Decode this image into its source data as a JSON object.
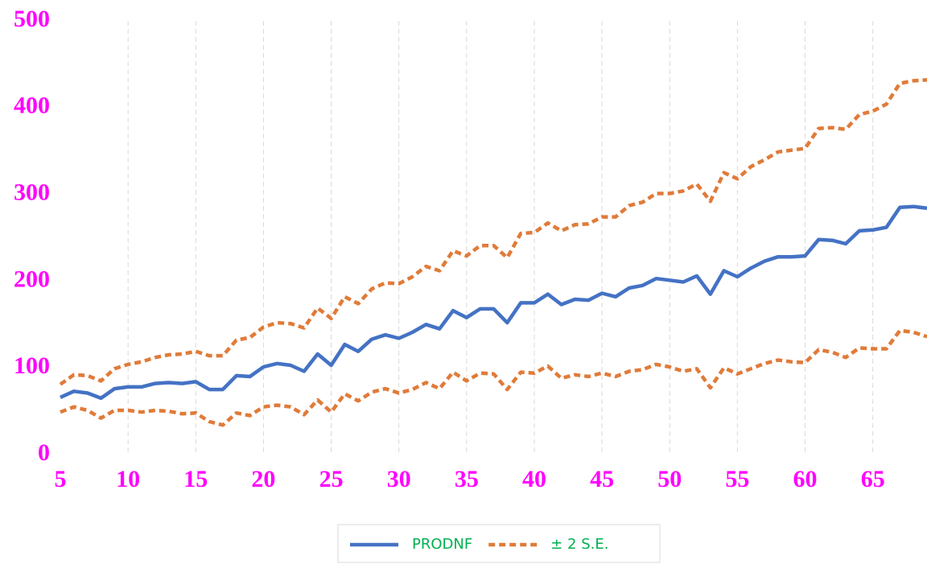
{
  "chart_data": {
    "type": "line",
    "x": [
      5,
      6,
      7,
      8,
      9,
      10,
      11,
      12,
      13,
      14,
      15,
      16,
      17,
      18,
      19,
      20,
      21,
      22,
      23,
      24,
      25,
      26,
      27,
      28,
      29,
      30,
      31,
      32,
      33,
      34,
      35,
      36,
      37,
      38,
      39,
      40,
      41,
      42,
      43,
      44,
      45,
      46,
      47,
      48,
      49,
      50,
      51,
      52,
      53,
      54,
      55,
      56,
      57,
      58,
      59,
      60,
      61,
      62,
      63,
      64,
      65,
      66,
      67,
      68,
      69
    ],
    "series": [
      {
        "name": "PRODNF",
        "color": "#4472c4",
        "dash": false,
        "values": [
          66,
          73,
          71,
          65,
          76,
          78,
          78,
          82,
          83,
          82,
          84,
          75,
          75,
          91,
          90,
          101,
          105,
          103,
          96,
          116,
          103,
          127,
          119,
          133,
          138,
          134,
          141,
          150,
          145,
          166,
          158,
          168,
          168,
          152,
          175,
          175,
          185,
          173,
          179,
          178,
          186,
          182,
          192,
          195,
          203,
          201,
          199,
          206,
          185,
          212,
          205,
          215,
          223,
          228,
          228,
          229,
          248,
          247,
          243,
          258,
          259,
          262,
          285,
          286,
          284
        ]
      },
      {
        "name": "± 2 S.E.",
        "color": "#e07b39",
        "dash": true,
        "values": [
          81,
          92,
          91,
          85,
          99,
          104,
          107,
          112,
          115,
          116,
          119,
          114,
          114,
          132,
          135,
          147,
          152,
          151,
          146,
          169,
          157,
          182,
          174,
          191,
          198,
          197,
          205,
          217,
          212,
          235,
          229,
          241,
          241,
          227,
          255,
          256,
          267,
          258,
          265,
          266,
          274,
          274,
          287,
          291,
          301,
          301,
          304,
          312,
          292,
          325,
          318,
          332,
          340,
          349,
          351,
          353,
          376,
          377,
          375,
          392,
          396,
          404,
          428,
          431,
          432
        ]
      },
      {
        "name": "± 2 S.E.",
        "color": "#e07b39",
        "dash": true,
        "values": [
          49,
          55,
          51,
          42,
          51,
          51,
          49,
          51,
          50,
          47,
          48,
          38,
          34,
          48,
          45,
          55,
          57,
          55,
          46,
          63,
          49,
          70,
          62,
          72,
          76,
          71,
          75,
          83,
          76,
          95,
          85,
          94,
          93,
          75,
          95,
          94,
          102,
          88,
          92,
          90,
          94,
          90,
          96,
          98,
          104,
          101,
          96,
          99,
          77,
          100,
          93,
          99,
          105,
          109,
          107,
          106,
          121,
          118,
          112,
          123,
          122,
          122,
          143,
          141,
          136
        ]
      }
    ],
    "xlim": [
      5,
      69
    ],
    "xticks": [
      5,
      10,
      15,
      20,
      25,
      30,
      35,
      40,
      45,
      50,
      55,
      60,
      65
    ],
    "ylim": [
      0,
      500
    ],
    "yticks": [
      0,
      100,
      200,
      300,
      400,
      500
    ],
    "grid": "x",
    "legend": "bottom"
  }
}
